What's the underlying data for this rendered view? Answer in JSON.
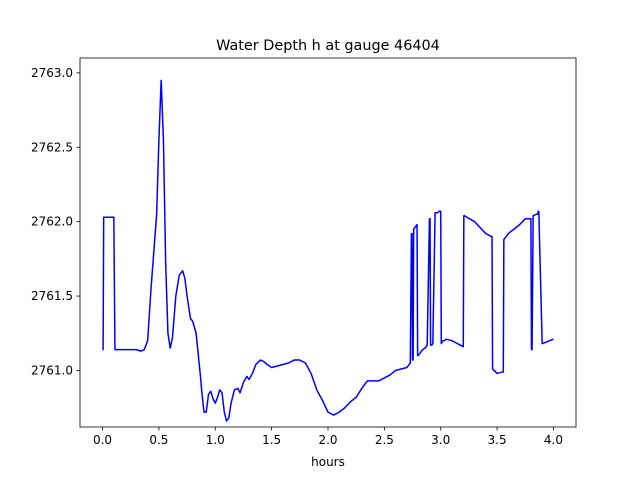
{
  "chart_data": {
    "type": "line",
    "title": "Water Depth h at gauge 46404",
    "xlabel": "hours",
    "ylabel": "",
    "xlim": [
      -0.2,
      4.2
    ],
    "ylim": [
      2760.62,
      2763.1
    ],
    "xticks": [
      0.0,
      0.5,
      1.0,
      1.5,
      2.0,
      2.5,
      3.0,
      3.5,
      4.0
    ],
    "xtick_labels": [
      "0.0",
      "0.5",
      "1.0",
      "1.5",
      "2.0",
      "2.5",
      "3.0",
      "3.5",
      "4.0"
    ],
    "yticks": [
      2761.0,
      2761.5,
      2762.0,
      2762.5,
      2763.0
    ],
    "ytick_labels": [
      "2761.0",
      "2761.5",
      "2762.0",
      "2762.5",
      "2763.0"
    ],
    "grid": false,
    "line_color": "#0000ff",
    "series": [
      {
        "name": "",
        "x": [
          0.0,
          0.005,
          0.01,
          0.1,
          0.11,
          0.15,
          0.2,
          0.25,
          0.3,
          0.34,
          0.37,
          0.4,
          0.43,
          0.46,
          0.48,
          0.5,
          0.52,
          0.54,
          0.56,
          0.58,
          0.6,
          0.62,
          0.65,
          0.68,
          0.71,
          0.73,
          0.75,
          0.78,
          0.8,
          0.83,
          0.85,
          0.87,
          0.88,
          0.9,
          0.92,
          0.94,
          0.96,
          0.98,
          1.0,
          1.02,
          1.04,
          1.06,
          1.08,
          1.1,
          1.12,
          1.14,
          1.17,
          1.2,
          1.22,
          1.25,
          1.28,
          1.3,
          1.33,
          1.36,
          1.4,
          1.43,
          1.46,
          1.5,
          1.55,
          1.6,
          1.65,
          1.7,
          1.75,
          1.8,
          1.85,
          1.9,
          1.95,
          2.0,
          2.05,
          2.1,
          2.15,
          2.2,
          2.25,
          2.3,
          2.35,
          2.4,
          2.45,
          2.5,
          2.55,
          2.6,
          2.65,
          2.7,
          2.73,
          2.74,
          2.745,
          2.75,
          2.755,
          2.76,
          2.78,
          2.79,
          2.795,
          2.8,
          2.81,
          2.82,
          2.84,
          2.86,
          2.88,
          2.9,
          2.905,
          2.91,
          2.92,
          2.93,
          2.95,
          2.97,
          2.99,
          3.0,
          3.005,
          3.01,
          3.02,
          3.03,
          3.05,
          3.1,
          3.15,
          3.2,
          3.205,
          3.21,
          3.3,
          3.4,
          3.45,
          3.455,
          3.46,
          3.5,
          3.55,
          3.555,
          3.56,
          3.6,
          3.65,
          3.7,
          3.75,
          3.8,
          3.805,
          3.81,
          3.82,
          3.85,
          3.86,
          3.865,
          3.87,
          3.9,
          4.0
        ],
        "values": [
          2761.14,
          2761.14,
          2762.03,
          2762.03,
          2761.14,
          2761.14,
          2761.14,
          2761.14,
          2761.14,
          2761.13,
          2761.14,
          2761.2,
          2761.55,
          2761.85,
          2762.05,
          2762.55,
          2762.95,
          2762.55,
          2761.72,
          2761.25,
          2761.15,
          2761.22,
          2761.5,
          2761.64,
          2761.67,
          2761.62,
          2761.5,
          2761.35,
          2761.33,
          2761.25,
          2761.1,
          2760.95,
          2760.86,
          2760.72,
          2760.72,
          2760.84,
          2760.86,
          2760.81,
          2760.78,
          2760.82,
          2760.87,
          2760.85,
          2760.72,
          2760.66,
          2760.68,
          2760.78,
          2760.87,
          2760.88,
          2760.85,
          2760.92,
          2760.96,
          2760.94,
          2760.98,
          2761.04,
          2761.07,
          2761.06,
          2761.04,
          2761.02,
          2761.03,
          2761.04,
          2761.05,
          2761.07,
          2761.07,
          2761.05,
          2760.98,
          2760.87,
          2760.8,
          2760.72,
          2760.7,
          2760.72,
          2760.75,
          2760.79,
          2760.82,
          2760.88,
          2760.93,
          2760.93,
          2760.93,
          2760.95,
          2760.97,
          2761.0,
          2761.01,
          2761.02,
          2761.05,
          2761.92,
          2761.92,
          2761.07,
          2761.07,
          2761.95,
          2761.97,
          2761.98,
          2761.1,
          2761.1,
          2761.11,
          2761.12,
          2761.14,
          2761.15,
          2761.17,
          2762.02,
          2762.02,
          2761.17,
          2761.17,
          2761.18,
          2762.06,
          2762.06,
          2762.07,
          2762.07,
          2761.18,
          2761.19,
          2761.2,
          2761.2,
          2761.21,
          2761.2,
          2761.18,
          2761.16,
          2762.04,
          2762.04,
          2762.0,
          2761.92,
          2761.9,
          2761.9,
          2761.01,
          2760.98,
          2760.99,
          2760.99,
          2761.88,
          2761.92,
          2761.95,
          2761.98,
          2762.02,
          2762.02,
          2761.14,
          2761.14,
          2762.04,
          2762.05,
          2762.05,
          2762.07,
          2762.07,
          2761.18,
          2761.21
        ]
      }
    ]
  }
}
